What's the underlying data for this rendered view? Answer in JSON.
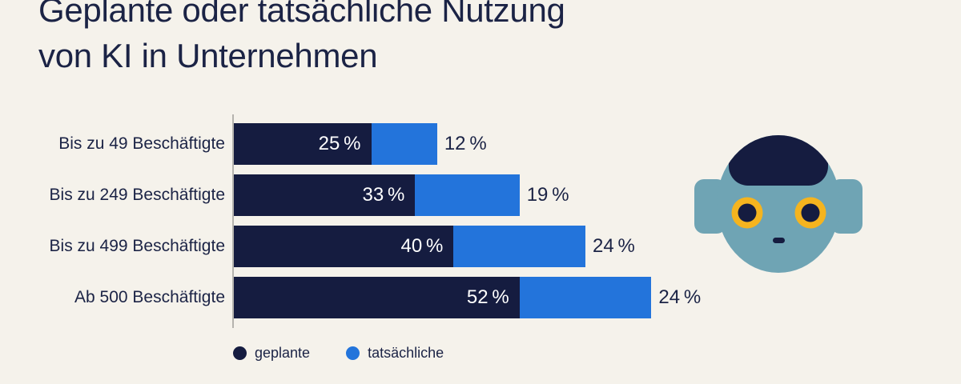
{
  "background_color": "#F5F2EB",
  "text_color": "#1B2345",
  "title": {
    "line1": "Geplante oder tatsächliche Nutzung",
    "line2": "von KI in Unternehmen"
  },
  "chart_data": {
    "type": "bar",
    "orientation": "horizontal",
    "stacked": true,
    "title": "Geplante oder tatsächliche Nutzung von KI in Unternehmen",
    "categories": [
      "Bis zu 49 Beschäftigte",
      "Bis zu 249 Beschäftigte",
      "Bis zu 499 Beschäftigte",
      "Ab 500 Beschäftigte"
    ],
    "series": [
      {
        "name": "geplante",
        "color": "#151C40",
        "values": [
          25,
          33,
          40,
          52
        ],
        "value_labels": [
          "25 %",
          "33 %",
          "40 %",
          "52 %"
        ],
        "label_position": "inside-end",
        "label_color": "#FFFFFF"
      },
      {
        "name": "tatsächliche",
        "color": "#2374DB",
        "values": [
          12,
          19,
          24,
          24
        ],
        "value_labels": [
          "12 %",
          "19 %",
          "24 %",
          "24 %"
        ],
        "label_position": "outside-end",
        "label_color": "#1B2345"
      }
    ],
    "xlim": [
      0,
      100
    ],
    "grid": false,
    "axis_line_color": "#B5B3AE",
    "legend_position": "bottom-left"
  },
  "legend": {
    "items": [
      {
        "label": "geplante",
        "color": "#151C40"
      },
      {
        "label": "tatsächliche",
        "color": "#2374DB"
      }
    ]
  },
  "robot": {
    "face_color": "#6FA4B4",
    "visor_color": "#151C40",
    "eye_ring_color": "#F5B41F",
    "pupil_color": "#151C40",
    "mouth_color": "#151C40"
  }
}
